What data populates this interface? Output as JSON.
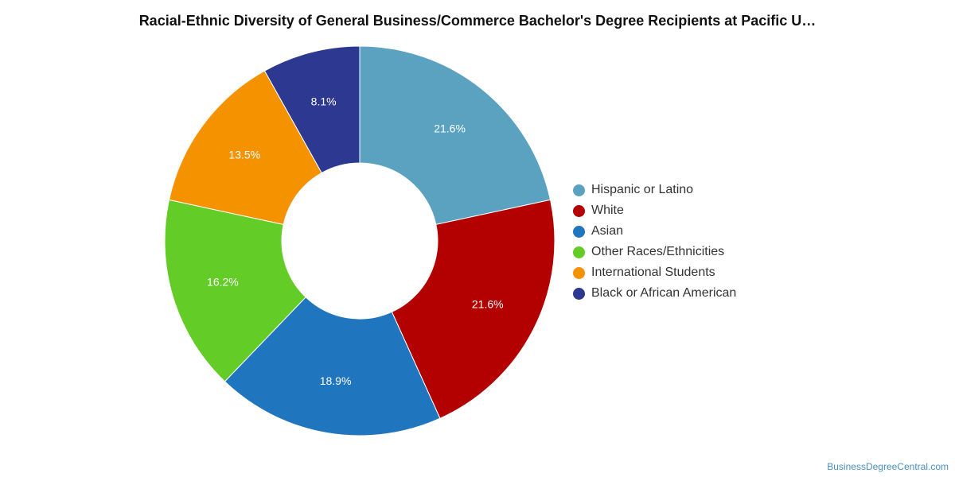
{
  "title": "Racial-Ethnic Diversity of General Business/Commerce Bachelor's Degree Recipients at Pacific U…",
  "source": "BusinessDegreeCentral.com",
  "chart_data": {
    "type": "pie",
    "donut": true,
    "title": "Racial-Ethnic Diversity of General Business/Commerce Bachelor's Degree Recipients at Pacific U…",
    "legend_position": "right",
    "categories": [
      "Hispanic or Latino",
      "White",
      "Asian",
      "Other Races/Ethnicities",
      "International Students",
      "Black or African American"
    ],
    "values": [
      21.6,
      21.6,
      18.9,
      16.2,
      13.5,
      8.1
    ],
    "labels": [
      "21.6%",
      "21.6%",
      "18.9%",
      "16.2%",
      "13.5%",
      "8.1%"
    ],
    "colors": [
      "#5ba1c0",
      "#b30000",
      "#1f75be",
      "#63cc26",
      "#f59200",
      "#2d3890"
    ]
  }
}
